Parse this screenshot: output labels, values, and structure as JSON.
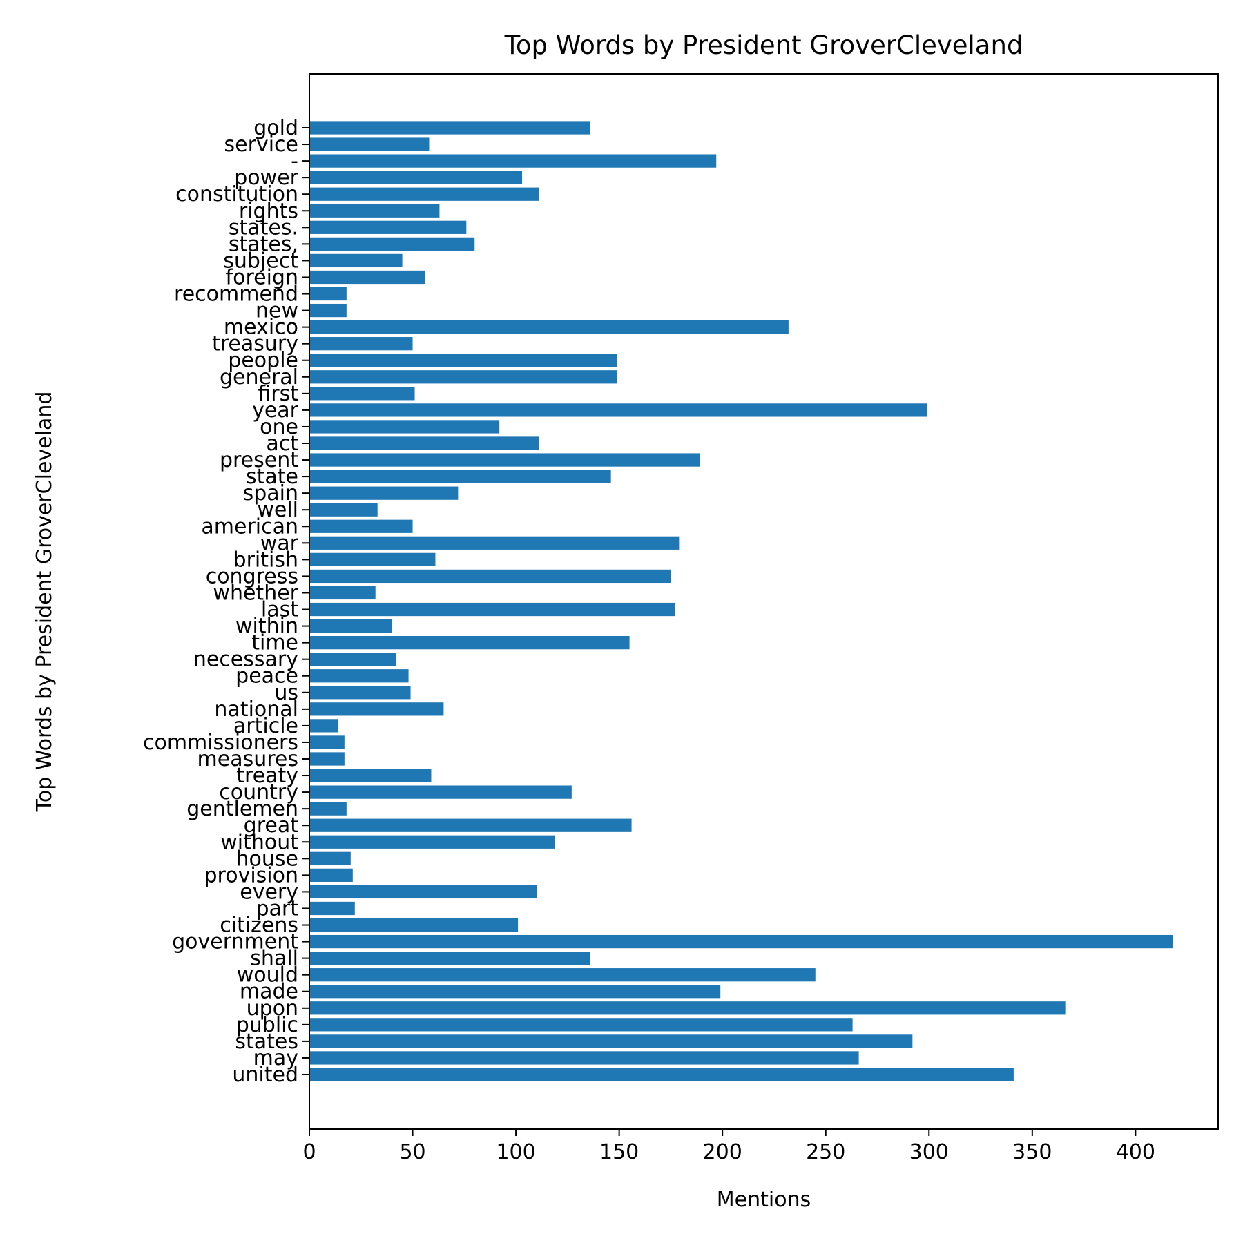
{
  "chart_data": {
    "type": "bar",
    "orientation": "horizontal",
    "title": "Top Words by President GroverCleveland",
    "xlabel": "Mentions",
    "ylabel": "Top Words by President GroverCleveland",
    "xlim": [
      0,
      440
    ],
    "xticks": [
      0,
      50,
      100,
      150,
      200,
      250,
      300,
      350,
      400
    ],
    "grid": false,
    "bar_color": "#1f77b4",
    "categories": [
      "united",
      "may",
      "states",
      "public",
      "upon",
      "made",
      "would",
      "shall",
      "government",
      "citizens",
      "part",
      "every",
      "provision",
      "house",
      "without",
      "great",
      "gentlemen",
      "country",
      "treaty",
      "measures",
      "commissioners",
      "article",
      "national",
      "us",
      "peace",
      "necessary",
      "time",
      "within",
      "last",
      "whether",
      "congress",
      "british",
      "war",
      "american",
      "well",
      "spain",
      "state",
      "present",
      "act",
      "one",
      "year",
      "first",
      "general",
      "people",
      "treasury",
      "mexico",
      "new",
      "recommend",
      "foreign",
      "subject",
      "states,",
      "states.",
      "rights",
      "constitution",
      "power",
      "-",
      "service",
      "gold"
    ],
    "values": [
      341,
      266,
      292,
      263,
      366,
      199,
      245,
      136,
      418,
      101,
      22,
      110,
      21,
      20,
      119,
      156,
      18,
      127,
      59,
      17,
      17,
      14,
      65,
      49,
      48,
      42,
      155,
      40,
      177,
      32,
      175,
      61,
      179,
      50,
      33,
      72,
      146,
      189,
      111,
      92,
      299,
      51,
      149,
      149,
      50,
      232,
      18,
      18,
      56,
      45,
      80,
      76,
      63,
      111,
      103,
      197,
      58,
      136
    ]
  }
}
